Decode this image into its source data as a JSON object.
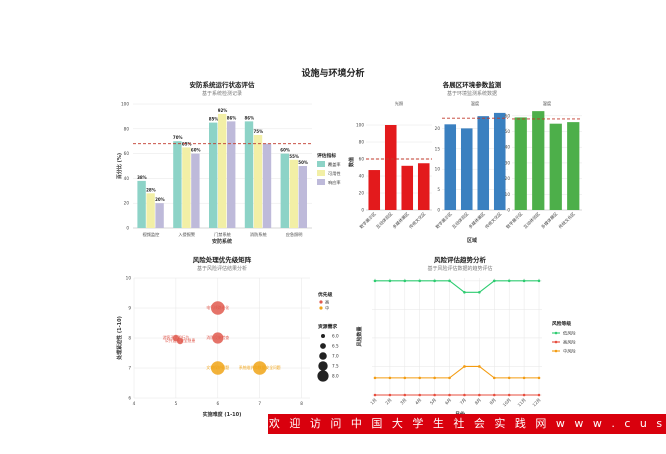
{
  "main_title": "设施与环境分析",
  "banner_text": "欢 迎 访 问 中 国 大 学 生 社 会 实 践 网   w w w . c u s s p . n e t",
  "chart_data": [
    {
      "type": "bar",
      "title": "安防系统运行状态评估",
      "subtitle": "基于系统检测记录",
      "xlabel": "安防系统",
      "ylabel": "百分比 (%)",
      "ylim": [
        0,
        100
      ],
      "yticks": [
        0,
        20,
        40,
        60,
        80,
        100
      ],
      "categories": [
        "视频监控",
        "入侵报警",
        "门禁系统",
        "消防系统",
        "应急照明"
      ],
      "series": [
        {
          "name": "覆盖率",
          "color": "#8dd3c7",
          "values": [
            38,
            70,
            85,
            86,
            60
          ]
        },
        {
          "name": "可用性",
          "color": "#f2efa6",
          "values": [
            28,
            65,
            92,
            75,
            55
          ]
        },
        {
          "name": "响应率",
          "color": "#bebada",
          "values": [
            20,
            60,
            86,
            68,
            50
          ]
        }
      ],
      "labels": [
        [
          "38%",
          "28%",
          "20%"
        ],
        [
          "70%",
          "65%",
          "60%"
        ],
        [
          "85%",
          "92%",
          "86%"
        ],
        [
          "86%",
          "75%",
          ""
        ],
        [
          "60%",
          "55%",
          "50%"
        ]
      ],
      "reference_line": 68,
      "reference_color": "#c0392b",
      "legend_title": "评估指标",
      "legend_position": "right"
    },
    {
      "type": "bar",
      "title": "各展区环境参数监测",
      "subtitle": "基于环境监测系统数据",
      "xlabel": "区域",
      "ylabel": "数值",
      "categories": [
        "数字展示区",
        "互动体验区",
        "多媒体展区",
        "传统文化区"
      ],
      "panels": [
        {
          "name": "光照",
          "color": "#e31a1c",
          "values": [
            47,
            100,
            52,
            55
          ],
          "reference": 60,
          "ylim": [
            0,
            120
          ],
          "yticks": [
            0,
            20,
            40,
            60,
            80,
            100
          ]
        },
        {
          "name": "温度",
          "color": "#3a80c0",
          "values": [
            21,
            20,
            23,
            23.8
          ],
          "reference": 22.5,
          "ylim": [
            0,
            25
          ],
          "yticks": [
            0,
            5,
            10,
            15,
            20
          ]
        },
        {
          "name": "湿度",
          "color": "#4daf4a",
          "values": [
            59,
            63,
            55,
            56
          ],
          "reference": 58,
          "ylim": [
            0,
            65
          ],
          "yticks": [
            0,
            10,
            20,
            30,
            40,
            50,
            60
          ]
        }
      ],
      "reference_color": "#c0392b"
    },
    {
      "type": "scatter",
      "title": "风险处理优先级矩阵",
      "subtitle": "基于风险评估结果分析",
      "xlabel": "实施难度 (1-10)",
      "ylabel": "处理紧迫性 (1-10)",
      "xlim": [
        4,
        8.2
      ],
      "ylim": [
        6,
        10
      ],
      "xticks": [
        4,
        5,
        6,
        7,
        8
      ],
      "yticks": [
        6,
        7,
        8,
        9,
        10
      ],
      "points": [
        {
          "label": "电气线路老化",
          "x": 6,
          "y": 9,
          "size": 8,
          "priority": "高"
        },
        {
          "label": "消防设施检查",
          "x": 6,
          "y": 8,
          "size": 7,
          "priority": "高"
        },
        {
          "label": "游客不文明行为",
          "x": 5,
          "y": 8,
          "size": 5,
          "priority": "高"
        },
        {
          "label": "公共设施安全隐患",
          "x": 5.1,
          "y": 7.9,
          "size": 5,
          "priority": "高"
        },
        {
          "label": "文物保护问题",
          "x": 6,
          "y": 7,
          "size": 8,
          "priority": "中"
        },
        {
          "label": "系统维护和数据安全问题",
          "x": 7,
          "y": 7,
          "size": 8,
          "priority": "中"
        }
      ],
      "priority_legend_title": "优先级",
      "priority_levels": [
        {
          "name": "高",
          "color": "#e05a4f"
        },
        {
          "name": "中",
          "color": "#f0a417"
        }
      ],
      "size_legend_title": "资源需求",
      "size_levels": [
        "6.0",
        "6.5",
        "7.0",
        "7.5",
        "8.0"
      ]
    },
    {
      "type": "line",
      "title": "风险评估趋势分析",
      "subtitle": "基于风险评估数据的趋势评估",
      "xlabel": "月份",
      "ylabel": "风险数量",
      "x": [
        "1月",
        "2月",
        "3月",
        "4月",
        "5月",
        "6月",
        "7月",
        "8月",
        "9月",
        "10月",
        "11月",
        "12月"
      ],
      "ylim": [
        0,
        20.5
      ],
      "series": [
        {
          "name": "低风险",
          "color": "#2ecc71",
          "values": [
            20,
            20,
            20,
            20,
            20,
            20,
            18,
            18,
            20,
            20,
            20,
            20
          ]
        },
        {
          "name": "高风险",
          "color": "#e74c3c",
          "values": [
            0,
            0,
            0,
            0,
            0,
            0,
            0,
            0,
            0,
            0,
            0,
            0
          ]
        },
        {
          "name": "中风险",
          "color": "#f39c12",
          "values": [
            3,
            3,
            3,
            3,
            3,
            3,
            5,
            5,
            3,
            3,
            3,
            3
          ]
        }
      ],
      "legend_title": "风险等级",
      "legend_position": "right"
    }
  ]
}
